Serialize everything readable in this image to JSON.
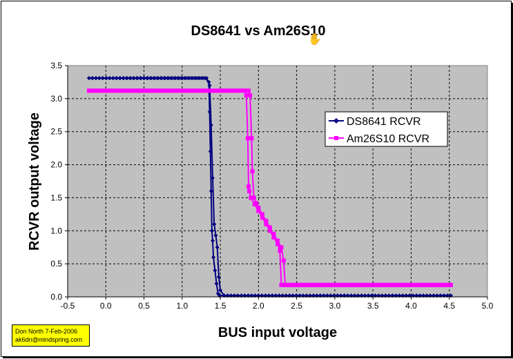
{
  "chart_data": {
    "type": "line",
    "title": "DS8641 vs Am26S10",
    "xlabel": "BUS input voltage",
    "ylabel": "RCVR output voltage",
    "xlim": [
      -0.5,
      5.0
    ],
    "ylim": [
      0,
      3.5
    ],
    "xticks": [
      "-0.5",
      "0.0",
      "0.5",
      "1.0",
      "1.5",
      "2.0",
      "2.5",
      "3.0",
      "3.5",
      "4.0",
      "4.5",
      "5.0"
    ],
    "yticks": [
      "0.0",
      "0.5",
      "1.0",
      "1.5",
      "2.0",
      "2.5",
      "3.0",
      "3.5"
    ],
    "grid": true,
    "legend_position": "right",
    "series": [
      {
        "name": "DS8641 RCVR",
        "color": "#000080",
        "marker": "diamond",
        "traces": [
          {
            "x": [
              -0.22,
              1.3,
              1.35,
              1.36,
              1.37,
              1.38,
              1.39,
              1.4,
              1.41,
              1.43,
              1.45,
              1.47,
              1.49,
              1.55,
              4.52
            ],
            "y": [
              3.31,
              3.31,
              3.25,
              2.8,
              2.2,
              1.6,
              1.0,
              0.85,
              0.6,
              0.4,
              0.2,
              0.05,
              0.02,
              0.02,
              0.02
            ]
          },
          {
            "x": [
              -0.22,
              1.32,
              1.36,
              1.38,
              1.4,
              1.42,
              1.44,
              1.46,
              1.48,
              1.5,
              1.55,
              4.52
            ],
            "y": [
              3.31,
              3.31,
              3.2,
              2.6,
              1.8,
              1.1,
              0.93,
              0.75,
              0.3,
              0.1,
              0.02,
              0.02
            ]
          }
        ]
      },
      {
        "name": "Am26S10 RCVR",
        "color": "#ff00ff",
        "marker": "square",
        "traces": [
          {
            "x": [
              -0.22,
              1.82,
              1.84,
              1.86,
              1.87,
              1.88,
              1.9,
              1.95,
              2.0,
              2.05,
              2.1,
              2.15,
              2.2,
              2.25,
              2.28,
              2.3,
              4.52
            ],
            "y": [
              3.12,
              3.12,
              3.05,
              2.4,
              1.67,
              1.6,
              1.5,
              1.4,
              1.3,
              1.2,
              1.1,
              1.0,
              0.9,
              0.8,
              0.7,
              0.18,
              0.18
            ]
          },
          {
            "x": [
              -0.22,
              1.87,
              1.89,
              1.91,
              1.92,
              1.94,
              1.97,
              2.0,
              2.05,
              2.1,
              2.15,
              2.2,
              2.25,
              2.3,
              2.33,
              2.35,
              4.52
            ],
            "y": [
              3.12,
              3.12,
              3.05,
              2.4,
              1.9,
              1.5,
              1.42,
              1.35,
              1.25,
              1.15,
              1.05,
              0.95,
              0.85,
              0.75,
              0.55,
              0.18,
              0.18
            ]
          }
        ]
      }
    ]
  },
  "note": {
    "line1": "Don North   7-Feb-2006",
    "line2": "ak6dn@mindspring.com"
  }
}
